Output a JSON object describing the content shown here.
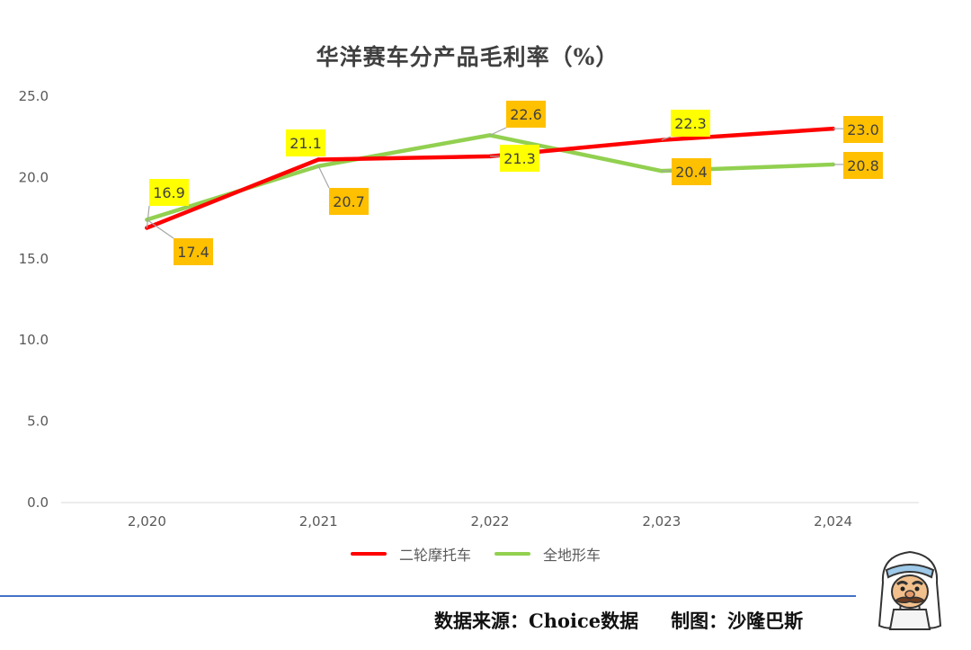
{
  "chart_data": {
    "type": "line",
    "title": "华洋赛车分产品毛利率（%）",
    "categories": [
      "2,020",
      "2,021",
      "2,022",
      "2,023",
      "2,024"
    ],
    "ylim": [
      0,
      25
    ],
    "yticks": [
      "0.0",
      "5.0",
      "10.0",
      "15.0",
      "20.0",
      "25.0"
    ],
    "grid": false,
    "legend_position": "bottom",
    "series": [
      {
        "name": "二轮摩托车",
        "color": "#ff0000",
        "values": [
          16.9,
          21.1,
          21.3,
          22.3,
          23.0
        ],
        "labels": [
          "16.9",
          "21.1",
          "21.3",
          "22.3",
          "23.0"
        ]
      },
      {
        "name": "全地形车",
        "color": "#92d050",
        "values": [
          17.4,
          20.7,
          22.6,
          20.4,
          20.8
        ],
        "labels": [
          "17.4",
          "20.7",
          "22.6",
          "20.4",
          "20.8"
        ]
      }
    ],
    "label_colors": {
      "light": "#ffff00",
      "dark": "#ffc000"
    }
  },
  "footer": {
    "source": "数据来源：Choice数据",
    "credit": "制图：沙隆巴斯"
  },
  "icons": {
    "mascot": "mascot-icon"
  },
  "rule_color": "#4472c4"
}
